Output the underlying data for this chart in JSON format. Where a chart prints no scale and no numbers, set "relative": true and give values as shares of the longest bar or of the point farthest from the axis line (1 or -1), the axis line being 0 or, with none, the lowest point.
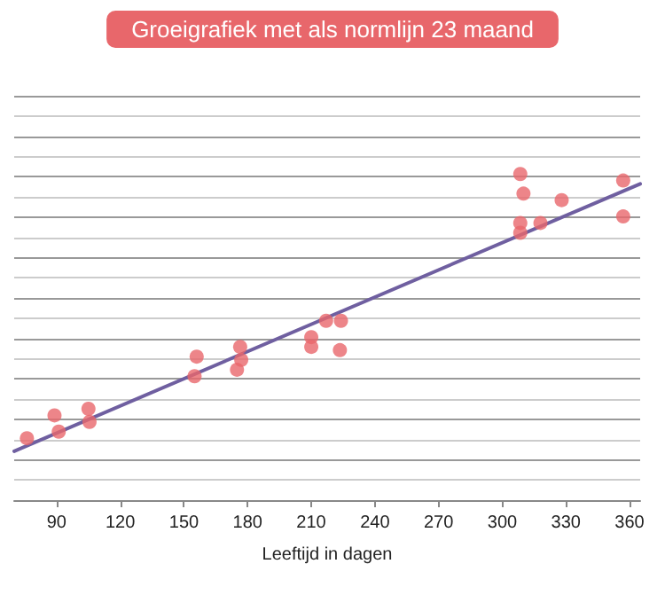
{
  "chart_data": {
    "type": "scatter",
    "title": "Groeigrafiek met als normlijn 23 maand",
    "xlabel": "Leeftijd in dagen",
    "relative": true,
    "xlim": [
      70,
      365
    ],
    "xticks": [
      90,
      120,
      150,
      180,
      210,
      240,
      270,
      300,
      330,
      360
    ],
    "grid": "y",
    "marker": "circle",
    "series": [
      {
        "color": "#e8676b",
        "x": [
          76,
          89,
          91,
          105,
          105.5,
          155,
          156,
          175,
          176.5,
          177,
          210,
          210,
          217,
          224,
          223.5,
          308.5,
          308.5,
          310,
          308.5,
          318,
          328,
          357,
          357
        ],
        "values": [
          0.19,
          0.26,
          0.21,
          0.28,
          0.24,
          0.38,
          0.44,
          0.4,
          0.47,
          0.43,
          0.5,
          0.47,
          0.55,
          0.55,
          0.46,
          0.85,
          0.82,
          0.94,
          1,
          0.85,
          0.92,
          0.98,
          0.87
        ]
      },
      {
        "type": "line",
        "marker": "none",
        "color": "#6f5fa0",
        "x": [
          70,
          365
        ],
        "values": [
          0.15,
          0.97
        ]
      }
    ]
  }
}
